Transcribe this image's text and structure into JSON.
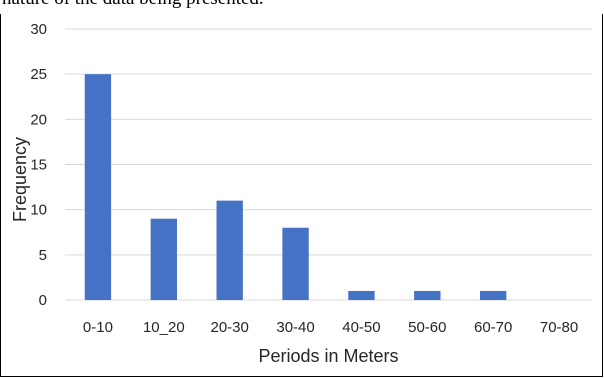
{
  "caption_text": "nature of the data being presented.",
  "chart_data": {
    "type": "bar",
    "categories": [
      "0-10",
      "10_20",
      "20-30",
      "30-40",
      "40-50",
      "50-60",
      "60-70",
      "70-80"
    ],
    "values": [
      25,
      9,
      11,
      8,
      1,
      1,
      1,
      0
    ],
    "title": "",
    "xlabel": "Periods in Meters",
    "ylabel": "Frequency",
    "ylim": [
      0,
      30
    ],
    "yticks": [
      "0",
      "5",
      "10",
      "15",
      "20",
      "25",
      "30"
    ],
    "grid": true,
    "legend": "none",
    "bar_color": "#4472C4",
    "grid_color": "#D9D9D9"
  }
}
